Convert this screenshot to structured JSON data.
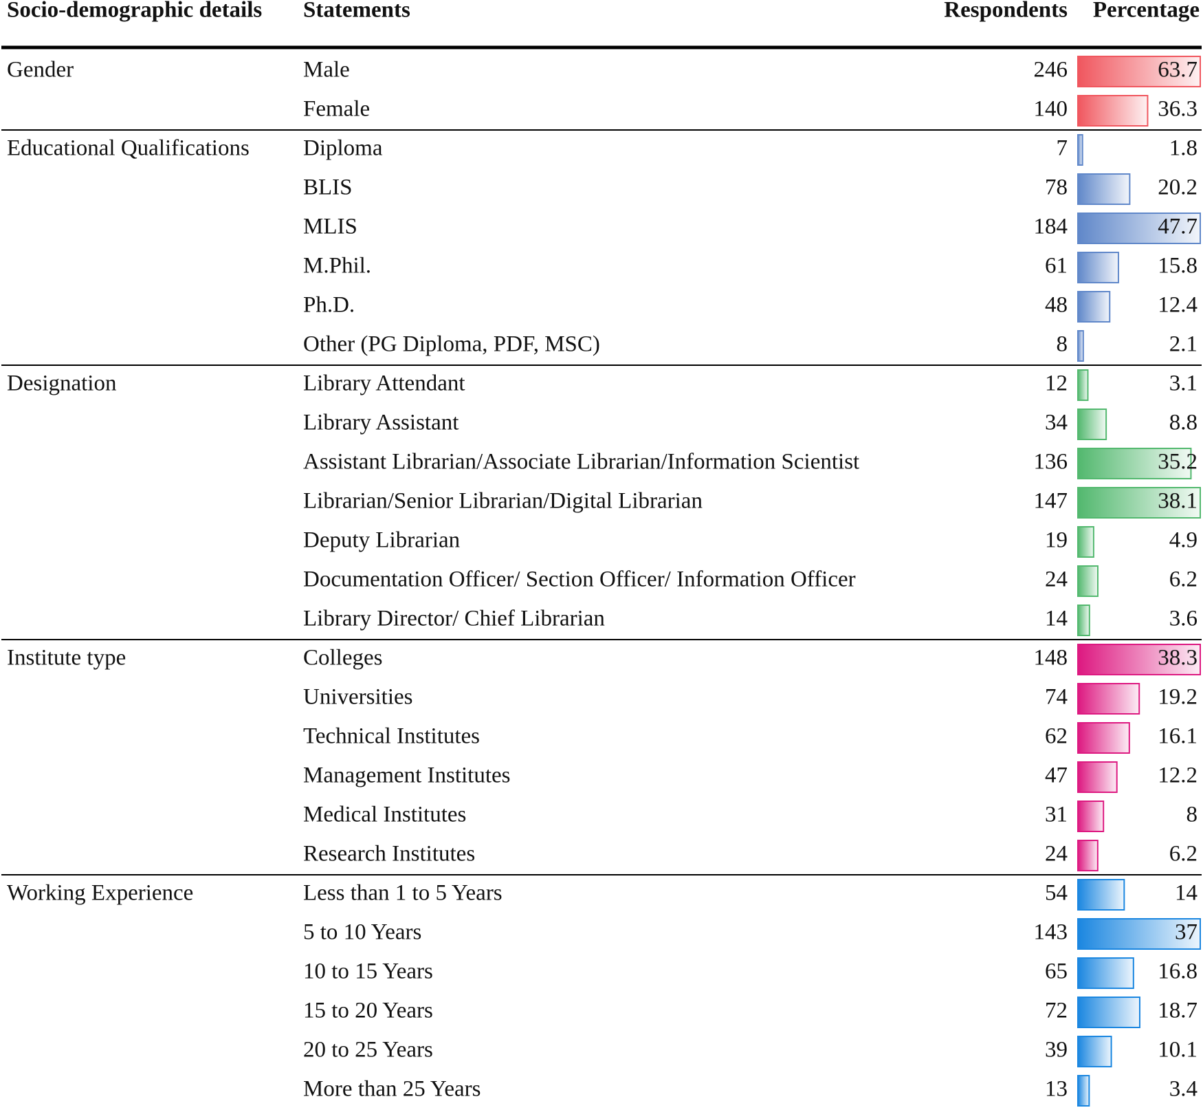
{
  "header": {
    "columns": [
      "Socio-demographic details",
      "Statements",
      "Respondents",
      "Percentage"
    ]
  },
  "groups": [
    {
      "label": "Gender",
      "color": "#f0565e",
      "rows": [
        {
          "statement": "Male",
          "respondents": 246,
          "percentage": 63.7
        },
        {
          "statement": "Female",
          "respondents": 140,
          "percentage": 36.3
        }
      ]
    },
    {
      "label": "Educational Qualifications",
      "color": "#5f87c9",
      "rows": [
        {
          "statement": "Diploma",
          "respondents": 7,
          "percentage": 1.8
        },
        {
          "statement": "BLIS",
          "respondents": 78,
          "percentage": 20.2
        },
        {
          "statement": "MLIS",
          "respondents": 184,
          "percentage": 47.7
        },
        {
          "statement": "M.Phil.",
          "respondents": 61,
          "percentage": 15.8
        },
        {
          "statement": "Ph.D.",
          "respondents": 48,
          "percentage": 12.4
        },
        {
          "statement": "Other (PG Diploma, PDF, MSC)",
          "respondents": 8,
          "percentage": 2.1
        }
      ]
    },
    {
      "label": "Designation",
      "color": "#52b86e",
      "rows": [
        {
          "statement": "Library Attendant",
          "respondents": 12,
          "percentage": 3.1
        },
        {
          "statement": "Library Assistant",
          "respondents": 34,
          "percentage": 8.8
        },
        {
          "statement": "Assistant Librarian/Associate Librarian/Information Scientist",
          "respondents": 136,
          "percentage": 35.2
        },
        {
          "statement": "Librarian/Senior Librarian/Digital Librarian",
          "respondents": 147,
          "percentage": 38.1
        },
        {
          "statement": "Deputy Librarian",
          "respondents": 19,
          "percentage": 4.9
        },
        {
          "statement": "Documentation Officer/ Section Officer/ Information Officer",
          "respondents": 24,
          "percentage": 6.2
        },
        {
          "statement": "Library Director/ Chief Librarian",
          "respondents": 14,
          "percentage": 3.6
        }
      ]
    },
    {
      "label": "Institute type",
      "color": "#dd1880",
      "rows": [
        {
          "statement": "Colleges",
          "respondents": 148,
          "percentage": 38.3
        },
        {
          "statement": "Universities",
          "respondents": 74,
          "percentage": 19.2
        },
        {
          "statement": "Technical Institutes",
          "respondents": 62,
          "percentage": 16.1
        },
        {
          "statement": "Management Institutes",
          "respondents": 47,
          "percentage": 12.2
        },
        {
          "statement": "Medical Institutes",
          "respondents": 31,
          "percentage": 8
        },
        {
          "statement": "Research Institutes",
          "respondents": 24,
          "percentage": 6.2
        }
      ]
    },
    {
      "label": "Working Experience",
      "color": "#1a86e0",
      "rows": [
        {
          "statement": "Less than 1 to 5 Years",
          "respondents": 54,
          "percentage": 14
        },
        {
          "statement": "5 to 10 Years",
          "respondents": 143,
          "percentage": 37
        },
        {
          "statement": "10 to 15 Years",
          "respondents": 65,
          "percentage": 16.8
        },
        {
          "statement": "15 to 20 Years",
          "respondents": 72,
          "percentage": 18.7
        },
        {
          "statement": "20 to 25 Years",
          "respondents": 39,
          "percentage": 10.1
        },
        {
          "statement": "More than 25 Years",
          "respondents": 13,
          "percentage": 3.4
        }
      ]
    }
  ]
}
